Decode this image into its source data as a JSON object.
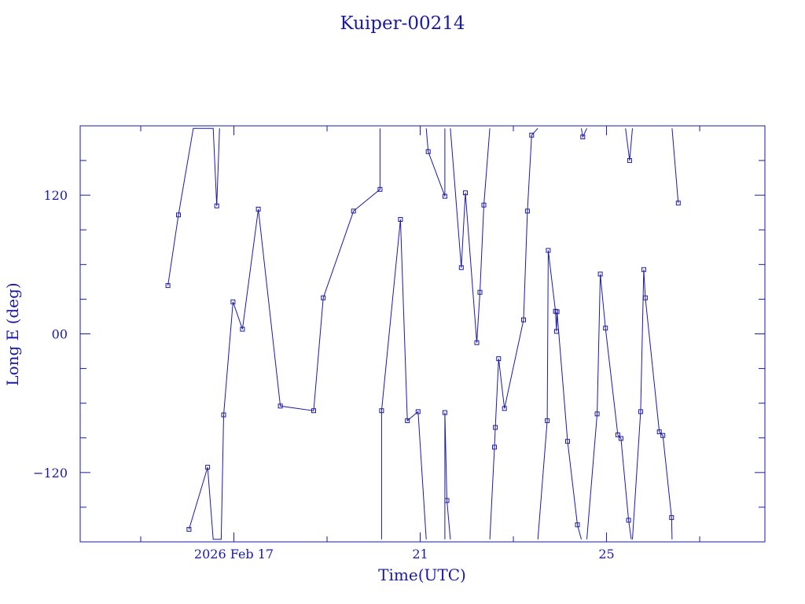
{
  "chart_data": {
    "type": "line",
    "title": "Kuiper-00214",
    "xlabel": "Time(UTC)",
    "ylabel": "Long E (deg)",
    "x_tick_labels": [
      "2026 Feb 17",
      "21",
      "25"
    ],
    "y_tick_labels": [
      "−120",
      "00",
      "120"
    ],
    "x_ticks_days": [
      17,
      21,
      25
    ],
    "y_ticks": [
      -120,
      0,
      120
    ],
    "xlim_days": [
      13.7,
      28.4
    ],
    "ylim": [
      -180,
      180
    ],
    "grid": false,
    "color": "#1a1aa6",
    "series": [
      {
        "points": [
          [
            15.584,
            41.8
          ],
          [
            15.809,
            102.9
          ],
          [
            16.129,
            177.8
          ],
          [
            16.556,
            177.8
          ],
          [
            16.631,
            110.7
          ],
          [
            16.693,
            177.8
          ]
        ]
      },
      {
        "points": [
          [
            16.035,
            -169.2
          ],
          [
            16.435,
            -115.4
          ],
          [
            16.556,
            -177.8
          ],
          [
            16.728,
            -177.8
          ],
          [
            16.78,
            -70.1
          ],
          [
            16.981,
            27.7
          ],
          [
            17.184,
            4.0
          ],
          [
            17.525,
            107.9
          ],
          [
            17.997,
            -62.5
          ],
          [
            18.712,
            -66.5
          ],
          [
            18.918,
            31.2
          ],
          [
            19.569,
            106.2
          ],
          [
            20.137,
            125.0
          ],
          [
            20.137,
            177.8
          ]
        ]
      },
      {
        "points": [
          [
            20.17,
            -177.8
          ],
          [
            20.17,
            -66.5
          ],
          [
            20.576,
            99.0
          ],
          [
            20.724,
            -75.1
          ],
          [
            20.953,
            -67.3
          ],
          [
            21.13,
            -177.8
          ]
        ]
      },
      {
        "points": [
          [
            21.13,
            177.8
          ],
          [
            21.171,
            157.7
          ],
          [
            21.53,
            119.0
          ],
          [
            21.53,
            177.8
          ]
        ]
      },
      {
        "points": [
          [
            21.53,
            -177.8
          ],
          [
            21.53,
            -68.1
          ],
          [
            21.574,
            -144.2
          ],
          [
            21.647,
            -177.8
          ]
        ]
      },
      {
        "points": [
          [
            21.647,
            177.8
          ],
          [
            21.882,
            57.3
          ],
          [
            21.97,
            122.0
          ],
          [
            22.215,
            -7.6
          ],
          [
            22.282,
            35.9
          ],
          [
            22.366,
            111.5
          ],
          [
            22.495,
            177.8
          ]
        ]
      },
      {
        "points": [
          [
            22.495,
            -177.8
          ],
          [
            22.594,
            -98.0
          ],
          [
            22.613,
            -81.0
          ],
          [
            22.683,
            -21.5
          ],
          [
            22.809,
            -64.6
          ],
          [
            23.219,
            12.1
          ],
          [
            23.302,
            106.2
          ],
          [
            23.392,
            172.0
          ],
          [
            23.526,
            177.8
          ]
        ]
      },
      {
        "points": [
          [
            23.526,
            -177.8
          ],
          [
            23.726,
            -75.1
          ],
          [
            23.748,
            72.2
          ],
          [
            23.904,
            19.5
          ],
          [
            23.926,
            2.1
          ],
          [
            23.937,
            19.1
          ],
          [
            24.164,
            -93.0
          ],
          [
            24.374,
            -165.2
          ],
          [
            24.46,
            -177.8
          ]
        ]
      },
      {
        "points": [
          [
            24.46,
            177.8
          ],
          [
            24.49,
            170.4
          ],
          [
            24.578,
            177.8
          ]
        ]
      },
      {
        "points": [
          [
            24.578,
            -177.8
          ],
          [
            24.798,
            -69.3
          ],
          [
            24.866,
            51.7
          ],
          [
            24.978,
            5.0
          ],
          [
            25.242,
            -87.4
          ],
          [
            25.31,
            -90.5
          ],
          [
            25.474,
            -161.3
          ],
          [
            25.531,
            -177.8
          ]
        ]
      },
      {
        "points": [
          [
            25.407,
            177.8
          ],
          [
            25.496,
            150.0
          ],
          [
            25.556,
            177.8
          ]
        ]
      },
      {
        "points": [
          [
            25.556,
            -177.8
          ],
          [
            25.731,
            -67.3
          ],
          [
            25.8,
            55.6
          ],
          [
            25.833,
            31.2
          ],
          [
            26.133,
            -84.8
          ],
          [
            26.209,
            -87.9
          ],
          [
            26.396,
            -159.0
          ],
          [
            26.406,
            -177.8
          ]
        ]
      },
      {
        "points": [
          [
            26.406,
            177.8
          ],
          [
            26.54,
            113.2
          ]
        ]
      }
    ],
    "breaks_only_no_marker": [
      [
        16.129,
        177.8
      ],
      [
        16.556,
        177.8
      ],
      [
        16.556,
        -177.8
      ],
      [
        16.693,
        177.8
      ],
      [
        16.728,
        -177.8
      ],
      [
        20.137,
        177.8
      ],
      [
        20.17,
        -177.8
      ],
      [
        21.13,
        -177.8
      ],
      [
        21.13,
        177.8
      ],
      [
        21.53,
        177.8
      ],
      [
        21.53,
        -177.8
      ],
      [
        21.647,
        -177.8
      ],
      [
        21.647,
        177.8
      ],
      [
        22.495,
        177.8
      ],
      [
        22.495,
        -177.8
      ],
      [
        23.526,
        177.8
      ],
      [
        23.526,
        -177.8
      ],
      [
        24.46,
        -177.8
      ],
      [
        24.46,
        177.8
      ],
      [
        24.578,
        177.8
      ],
      [
        24.578,
        -177.8
      ],
      [
        25.531,
        -177.8
      ],
      [
        25.407,
        177.8
      ],
      [
        25.556,
        177.8
      ],
      [
        25.556,
        -177.8
      ],
      [
        26.406,
        -177.8
      ],
      [
        26.406,
        177.8
      ]
    ]
  }
}
